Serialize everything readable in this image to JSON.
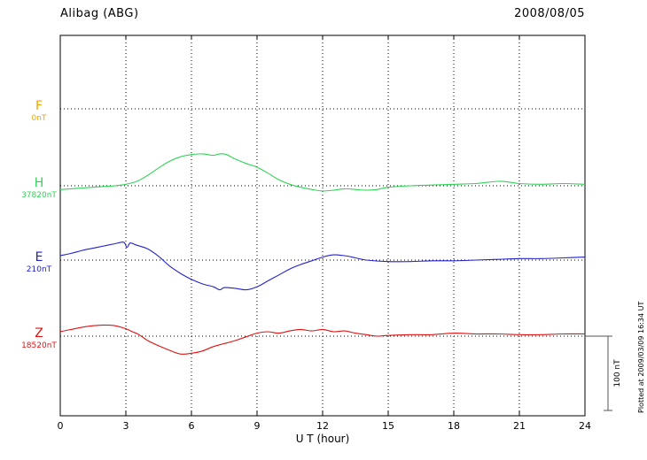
{
  "header": {
    "station": "Alibag (ABG)",
    "date": "2008/08/05"
  },
  "footer": {
    "plotted_at": "Plotted at 2009/03/09 16:34 UT"
  },
  "chart_data": {
    "type": "line",
    "title": "Alibag (ABG)",
    "date": "2008/08/05",
    "xlabel": "U T (hour)",
    "xlim": [
      0,
      24
    ],
    "x_ticks": [
      0,
      3,
      6,
      9,
      12,
      15,
      18,
      21,
      24
    ],
    "grid": "dotted vertical gridlines every 3 hours; dotted horizontal baseline per component",
    "legend_position": "left margin, one colored label per component",
    "scale_bar_label": "100 nT",
    "scale_bar_nT": 100,
    "y_unit": "nT offset from component baseline",
    "series": [
      {
        "name": "F",
        "baseline_label": "0nT",
        "color": "#f0a400",
        "note": "no trace plotted (data gap)",
        "x": [],
        "y": []
      },
      {
        "name": "H",
        "baseline_label": "37820nT",
        "color": "#2ed455",
        "x": [
          0,
          0.5,
          1,
          1.5,
          2,
          2.5,
          3,
          3.5,
          4,
          4.5,
          5,
          5.5,
          6,
          6.5,
          7,
          7.3,
          7.6,
          8,
          8.5,
          9,
          9.5,
          10,
          10.5,
          11,
          11.5,
          12,
          12.5,
          13,
          13.5,
          14,
          14.5,
          15,
          16,
          17,
          18,
          19,
          20,
          20.5,
          21,
          22,
          23,
          24
        ],
        "y": [
          -5,
          -4,
          -3,
          -2,
          -1,
          0,
          2,
          6,
          14,
          24,
          33,
          39,
          42,
          43,
          41,
          43,
          42,
          36,
          30,
          25,
          17,
          8,
          2,
          -2,
          -5,
          -7,
          -6,
          -4,
          -5,
          -6,
          -5,
          -2,
          0,
          1,
          2,
          3,
          6,
          5,
          3,
          2,
          3,
          2
        ]
      },
      {
        "name": "E",
        "baseline_label": "210nT",
        "color": "#2222cc",
        "x": [
          0,
          0.5,
          1,
          1.5,
          2,
          2.5,
          2.9,
          3.05,
          3.2,
          3.5,
          4,
          4.5,
          5,
          5.5,
          6,
          6.5,
          7,
          7.3,
          7.5,
          8,
          8.5,
          9,
          9.5,
          10,
          10.5,
          11,
          11.5,
          12,
          12.5,
          13,
          13.5,
          14,
          15,
          16,
          17,
          18,
          19,
          20,
          21,
          22,
          23,
          24
        ],
        "y": [
          6,
          9,
          13,
          16,
          19,
          22,
          24,
          17,
          23,
          20,
          15,
          5,
          -8,
          -18,
          -26,
          -32,
          -36,
          -40,
          -37,
          -38,
          -40,
          -36,
          -28,
          -20,
          -12,
          -6,
          -1,
          4,
          7,
          6,
          3,
          0,
          -2,
          -2,
          -1,
          -1,
          0,
          1,
          2,
          2,
          3,
          4
        ]
      },
      {
        "name": "Z",
        "baseline_label": "18520nT",
        "color": "#e01212",
        "x": [
          0,
          0.5,
          1,
          1.5,
          2,
          2.5,
          3,
          3.3,
          3.6,
          4,
          4.5,
          5,
          5.5,
          6,
          6.5,
          7,
          7.5,
          8,
          8.5,
          9,
          9.5,
          10,
          10.5,
          11,
          11.5,
          12,
          12.5,
          13,
          13.5,
          14,
          14.5,
          15,
          16,
          17,
          18,
          19,
          20,
          21,
          22,
          23,
          24
        ],
        "y": [
          6,
          9,
          12,
          14,
          15,
          14,
          10,
          6,
          2,
          -6,
          -13,
          -19,
          -24,
          -23,
          -20,
          -14,
          -10,
          -6,
          -1,
          4,
          6,
          4,
          7,
          9,
          7,
          9,
          6,
          7,
          4,
          2,
          0,
          1,
          2,
          2,
          4,
          3,
          3,
          2,
          2,
          3,
          3
        ]
      }
    ]
  }
}
